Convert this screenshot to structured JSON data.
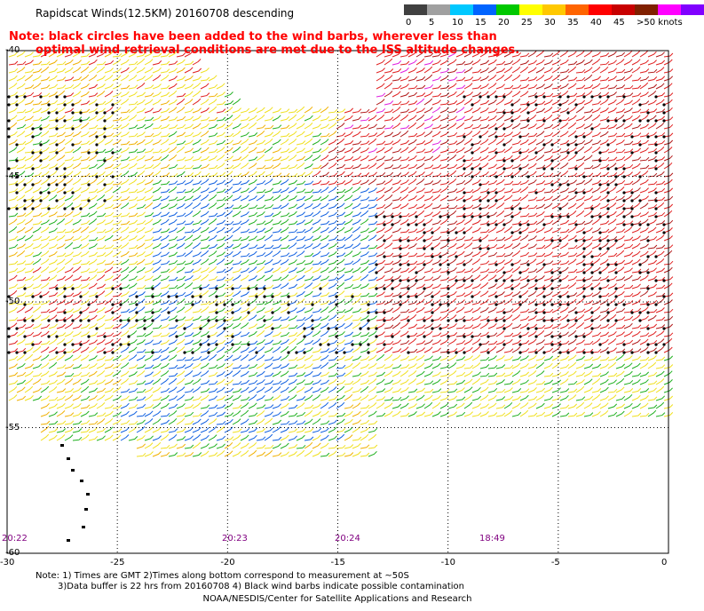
{
  "title": "Rapidscat Winds(12.5KM) 20160708 descending",
  "note": {
    "line1": "Note: black circles have been added to the wind barbs, wherever less than",
    "line2": "optimal wind retrieval conditions are met due to the ISS altitude changes."
  },
  "colorbar": {
    "unit": "knots",
    "labels": [
      "0",
      "5",
      "10",
      "15",
      "20",
      "25",
      "30",
      "35",
      "40",
      "45",
      ">50 knots"
    ],
    "colors": [
      "#404040",
      "#a0a0a0",
      "#00c8ff",
      "#0064ff",
      "#00c800",
      "#ffff00",
      "#ffc800",
      "#ff6400",
      "#ff0000",
      "#c80000",
      "#802000",
      "#ff00ff",
      "#8000ff"
    ]
  },
  "axes": {
    "lat_labels": [
      "-40",
      "-45",
      "-50",
      "-55",
      "-60"
    ],
    "lon_labels": [
      "-30",
      "-25",
      "-20",
      "-15",
      "-10",
      "-5",
      "0"
    ],
    "lat_range": [
      -60,
      -40
    ],
    "lon_range": [
      -30,
      0
    ]
  },
  "times": [
    "20:22",
    "20:23",
    "20:24",
    "18:49"
  ],
  "footnote": {
    "line1": "Note: 1) Times are GMT 2)Times along bottom correspond to measurement at ~50S",
    "line2": "3)Data buffer is 22 hrs from 20160708 4) Black wind barbs indicate possible contamination"
  },
  "credit": "NOAA/NESDIS/Center for Satellite Applications and Research"
}
